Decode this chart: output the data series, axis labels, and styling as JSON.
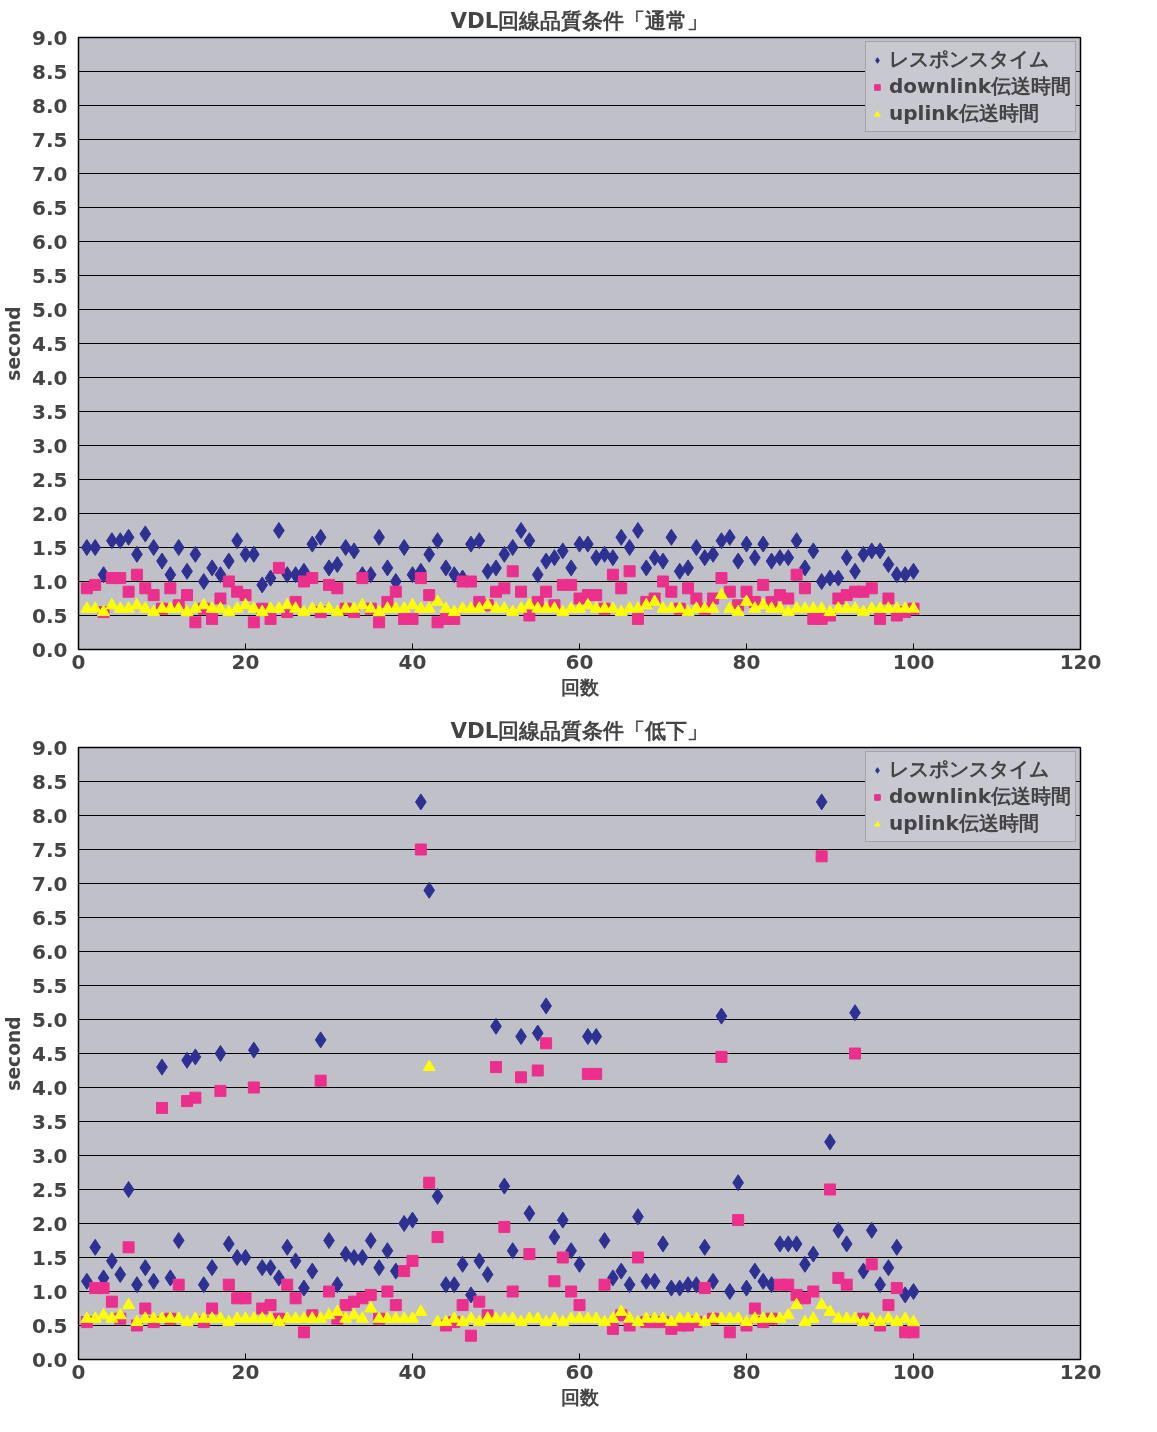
{
  "chart_data": [
    {
      "type": "scatter",
      "title": "VDL回線品質条件「通常」",
      "xlabel": "回数",
      "ylabel": "second",
      "xlim": [
        0,
        120
      ],
      "ylim": [
        0,
        9
      ],
      "xticks": [
        0,
        20,
        40,
        60,
        80,
        100,
        120
      ],
      "yticks": [
        {
          "value": 0,
          "label": "0.0"
        },
        {
          "value": 0.5,
          "label": "0.5"
        },
        {
          "value": 1,
          "label": "1.0"
        },
        {
          "value": 1.5,
          "label": "1.5"
        },
        {
          "value": 2,
          "label": "2.0"
        },
        {
          "value": 2.5,
          "label": "2.5"
        },
        {
          "value": 3,
          "label": "3.0"
        },
        {
          "value": 3.5,
          "label": "3.5"
        },
        {
          "value": 4,
          "label": "4.0"
        },
        {
          "value": 4.5,
          "label": "4.5"
        },
        {
          "value": 5,
          "label": "5.0"
        },
        {
          "value": 5.5,
          "label": "5.5"
        },
        {
          "value": 6,
          "label": "6.0"
        },
        {
          "value": 6.5,
          "label": "6.5"
        },
        {
          "value": 7,
          "label": "7.0"
        },
        {
          "value": 7.5,
          "label": "7.5"
        },
        {
          "value": 8,
          "label": "8.0"
        },
        {
          "value": 8.5,
          "label": "8.5"
        },
        {
          "value": 9,
          "label": "9.0"
        }
      ],
      "grid": "y",
      "legend": "top right",
      "x": [
        1,
        2,
        3,
        4,
        5,
        6,
        7,
        8,
        9,
        10,
        11,
        12,
        13,
        14,
        15,
        16,
        17,
        18,
        19,
        20,
        21,
        22,
        23,
        24,
        25,
        26,
        27,
        28,
        29,
        30,
        31,
        32,
        33,
        34,
        35,
        36,
        37,
        38,
        39,
        40,
        41,
        42,
        43,
        44,
        45,
        46,
        47,
        48,
        49,
        50,
        51,
        52,
        53,
        54,
        55,
        56,
        57,
        58,
        59,
        60,
        61,
        62,
        63,
        64,
        65,
        66,
        67,
        68,
        69,
        70,
        71,
        72,
        73,
        74,
        75,
        76,
        77,
        78,
        79,
        80,
        81,
        82,
        83,
        84,
        85,
        86,
        87,
        88,
        89,
        90,
        91,
        92,
        93,
        94,
        95,
        96,
        97,
        98,
        99,
        100
      ],
      "series": [
        {
          "name": "レスポンスタイム",
          "color": "#2e3192",
          "marker": "diamond",
          "values": [
            1.5,
            1.5,
            1.1,
            1.6,
            1.6,
            1.65,
            1.4,
            1.7,
            1.5,
            1.3,
            1.1,
            1.5,
            1.15,
            1.4,
            1.0,
            1.2,
            1.1,
            1.3,
            1.6,
            1.4,
            1.4,
            0.95,
            1.05,
            1.75,
            1.1,
            1.1,
            1.15,
            1.55,
            1.65,
            1.2,
            1.25,
            1.5,
            1.45,
            1.1,
            1.1,
            1.65,
            1.2,
            1.0,
            1.5,
            1.1,
            1.15,
            1.4,
            1.6,
            1.2,
            1.1,
            1.05,
            1.55,
            1.6,
            1.15,
            1.2,
            1.4,
            1.5,
            1.75,
            1.6,
            1.1,
            1.3,
            1.35,
            1.45,
            1.2,
            1.55,
            1.55,
            1.35,
            1.4,
            1.35,
            1.65,
            1.5,
            1.75,
            1.2,
            1.35,
            1.3,
            1.65,
            1.15,
            1.2,
            1.5,
            1.35,
            1.4,
            1.6,
            1.65,
            1.3,
            1.55,
            1.35,
            1.55,
            1.3,
            1.35,
            1.35,
            1.6,
            1.2,
            1.45,
            1.0,
            1.05,
            1.05,
            1.35,
            1.15,
            1.4,
            1.45,
            1.45,
            1.25,
            1.1,
            1.1,
            1.15
          ]
        },
        {
          "name": "downlink伝送時間",
          "color": "#ec2f8c",
          "marker": "square",
          "values": [
            0.9,
            0.95,
            0.55,
            1.05,
            1.05,
            0.85,
            1.1,
            0.9,
            0.8,
            0.6,
            0.9,
            0.65,
            0.8,
            0.4,
            0.6,
            0.45,
            0.75,
            1.0,
            0.85,
            0.8,
            0.4,
            0.6,
            0.45,
            1.2,
            0.55,
            0.7,
            1.0,
            1.05,
            0.55,
            0.95,
            0.9,
            0.6,
            0.55,
            1.05,
            0.6,
            0.4,
            0.7,
            0.85,
            0.45,
            0.45,
            1.05,
            0.8,
            0.4,
            0.45,
            0.45,
            1.0,
            1.0,
            0.7,
            0.65,
            0.85,
            0.9,
            1.15,
            0.85,
            0.5,
            0.7,
            0.85,
            0.65,
            0.95,
            0.95,
            0.75,
            0.8,
            0.8,
            0.6,
            1.1,
            0.9,
            1.15,
            0.45,
            0.7,
            0.75,
            1.0,
            0.85,
            0.6,
            0.9,
            0.75,
            0.6,
            0.75,
            1.05,
            0.85,
            0.65,
            0.85,
            0.7,
            0.95,
            0.7,
            0.8,
            0.75,
            1.1,
            0.9,
            0.45,
            0.45,
            0.5,
            0.75,
            0.8,
            0.85,
            0.85,
            0.9,
            0.45,
            0.75,
            0.5,
            0.55,
            0.6
          ]
        },
        {
          "name": "uplink伝送時間",
          "color": "#ffff00",
          "marker": "triangle",
          "values": [
            0.6,
            0.6,
            0.55,
            0.65,
            0.6,
            0.6,
            0.65,
            0.6,
            0.55,
            0.6,
            0.6,
            0.6,
            0.55,
            0.6,
            0.65,
            0.6,
            0.6,
            0.55,
            0.6,
            0.65,
            0.6,
            0.55,
            0.6,
            0.6,
            0.65,
            0.6,
            0.55,
            0.6,
            0.6,
            0.6,
            0.55,
            0.6,
            0.6,
            0.65,
            0.6,
            0.55,
            0.6,
            0.6,
            0.6,
            0.65,
            0.6,
            0.6,
            0.7,
            0.6,
            0.55,
            0.6,
            0.6,
            0.6,
            0.65,
            0.6,
            0.6,
            0.55,
            0.6,
            0.65,
            0.6,
            0.6,
            0.6,
            0.55,
            0.6,
            0.6,
            0.65,
            0.6,
            0.6,
            0.6,
            0.55,
            0.6,
            0.6,
            0.65,
            0.7,
            0.6,
            0.6,
            0.6,
            0.55,
            0.6,
            0.6,
            0.6,
            0.8,
            0.6,
            0.55,
            0.7,
            0.6,
            0.65,
            0.6,
            0.6,
            0.55,
            0.6,
            0.6,
            0.6,
            0.6,
            0.55,
            0.6,
            0.6,
            0.6,
            0.55,
            0.6,
            0.6,
            0.6,
            0.6,
            0.6,
            0.6
          ]
        }
      ]
    },
    {
      "type": "scatter",
      "title": "VDL回線品質条件「低下」",
      "xlabel": "回数",
      "ylabel": "second",
      "xlim": [
        0,
        120
      ],
      "ylim": [
        0,
        9
      ],
      "xticks": [
        0,
        20,
        40,
        60,
        80,
        100,
        120
      ],
      "yticks": [
        {
          "value": 0,
          "label": "0.0"
        },
        {
          "value": 0.5,
          "label": "0.5"
        },
        {
          "value": 1,
          "label": "1.0"
        },
        {
          "value": 1.5,
          "label": "1.5"
        },
        {
          "value": 2,
          "label": "2.0"
        },
        {
          "value": 2.5,
          "label": "2.5"
        },
        {
          "value": 3,
          "label": "3.0"
        },
        {
          "value": 3.5,
          "label": "3.5"
        },
        {
          "value": 4,
          "label": "4.0"
        },
        {
          "value": 4.5,
          "label": "4.5"
        },
        {
          "value": 5,
          "label": "5.0"
        },
        {
          "value": 5.5,
          "label": "5.5"
        },
        {
          "value": 6,
          "label": "6.0"
        },
        {
          "value": 6.5,
          "label": "6.5"
        },
        {
          "value": 7,
          "label": "7.0"
        },
        {
          "value": 7.5,
          "label": "7.5"
        },
        {
          "value": 8,
          "label": "8.0"
        },
        {
          "value": 8.5,
          "label": "8.5"
        },
        {
          "value": 9,
          "label": "9.0"
        }
      ],
      "grid": "y",
      "legend": "top right",
      "x": [
        1,
        2,
        3,
        4,
        5,
        6,
        7,
        8,
        9,
        10,
        11,
        12,
        13,
        14,
        15,
        16,
        17,
        18,
        19,
        20,
        21,
        22,
        23,
        24,
        25,
        26,
        27,
        28,
        29,
        30,
        31,
        32,
        33,
        34,
        35,
        36,
        37,
        38,
        39,
        40,
        41,
        42,
        43,
        44,
        45,
        46,
        47,
        48,
        49,
        50,
        51,
        52,
        53,
        54,
        55,
        56,
        57,
        58,
        59,
        60,
        61,
        62,
        63,
        64,
        65,
        66,
        67,
        68,
        69,
        70,
        71,
        72,
        73,
        74,
        75,
        76,
        77,
        78,
        79,
        80,
        81,
        82,
        83,
        84,
        85,
        86,
        87,
        88,
        89,
        90,
        91,
        92,
        93,
        94,
        95,
        96,
        97,
        98,
        99,
        100
      ],
      "series": [
        {
          "name": "レスポンスタイム",
          "color": "#2e3192",
          "marker": "diamond",
          "values": [
            1.15,
            1.65,
            1.2,
            1.45,
            1.25,
            2.5,
            1.1,
            1.35,
            1.15,
            4.3,
            1.2,
            1.75,
            4.4,
            4.45,
            1.1,
            1.35,
            4.5,
            1.7,
            1.5,
            1.5,
            4.55,
            1.35,
            1.35,
            1.2,
            1.65,
            1.45,
            1.05,
            1.3,
            4.7,
            1.75,
            1.1,
            1.55,
            1.5,
            1.5,
            1.75,
            1.35,
            1.6,
            1.3,
            2.0,
            2.05,
            8.2,
            6.9,
            2.4,
            1.1,
            1.1,
            1.4,
            0.95,
            1.45,
            1.25,
            4.9,
            2.55,
            1.6,
            4.75,
            2.15,
            4.8,
            5.2,
            1.8,
            2.05,
            1.6,
            1.4,
            4.75,
            4.75,
            1.75,
            1.2,
            1.3,
            1.1,
            2.1,
            1.15,
            1.15,
            1.7,
            1.05,
            1.05,
            1.1,
            1.1,
            1.65,
            1.15,
            5.05,
            1.0,
            2.6,
            1.05,
            1.3,
            1.15,
            1.1,
            1.7,
            1.7,
            1.7,
            1.4,
            1.55,
            8.2,
            3.2,
            1.9,
            1.7,
            5.1,
            1.3,
            1.9,
            1.1,
            1.35,
            1.65,
            0.95,
            1.0
          ]
        },
        {
          "name": "downlink伝送時間",
          "color": "#ec2f8c",
          "marker": "square",
          "values": [
            0.55,
            1.05,
            1.05,
            0.85,
            0.6,
            1.65,
            0.5,
            0.75,
            0.55,
            3.7,
            0.6,
            1.1,
            3.8,
            3.85,
            0.55,
            0.75,
            3.95,
            1.1,
            0.9,
            0.9,
            4.0,
            0.75,
            0.8,
            0.6,
            1.1,
            0.9,
            0.4,
            0.65,
            4.1,
            1.0,
            0.6,
            0.8,
            0.85,
            0.9,
            0.95,
            0.6,
            1.0,
            0.8,
            1.3,
            1.45,
            7.5,
            2.6,
            1.8,
            0.5,
            0.55,
            0.8,
            0.35,
            0.85,
            0.65,
            4.3,
            1.95,
            1.0,
            4.15,
            1.55,
            4.25,
            4.65,
            1.15,
            1.5,
            1.0,
            0.8,
            4.2,
            4.2,
            1.1,
            0.45,
            0.65,
            0.5,
            1.5,
            0.55,
            0.55,
            0.55,
            0.45,
            0.5,
            0.5,
            0.55,
            1.05,
            0.6,
            4.45,
            0.4,
            2.05,
            0.5,
            0.75,
            0.55,
            0.6,
            1.1,
            1.1,
            0.95,
            0.9,
            1.0,
            7.4,
            2.5,
            1.2,
            1.1,
            4.5,
            0.6,
            1.4,
            0.5,
            0.8,
            1.05,
            0.4,
            0.4
          ]
        },
        {
          "name": "uplink伝送時間",
          "color": "#ffff00",
          "marker": "triangle",
          "values": [
            0.6,
            0.6,
            0.65,
            0.6,
            0.65,
            0.8,
            0.55,
            0.6,
            0.6,
            0.6,
            0.6,
            0.6,
            0.55,
            0.6,
            0.6,
            0.6,
            0.6,
            0.55,
            0.6,
            0.6,
            0.6,
            0.6,
            0.6,
            0.55,
            0.6,
            0.6,
            0.6,
            0.6,
            0.6,
            0.65,
            0.7,
            0.6,
            0.65,
            0.6,
            0.75,
            0.6,
            0.6,
            0.6,
            0.6,
            0.6,
            0.7,
            4.3,
            0.55,
            0.55,
            0.6,
            0.55,
            0.6,
            0.55,
            0.6,
            0.6,
            0.6,
            0.6,
            0.55,
            0.6,
            0.6,
            0.55,
            0.6,
            0.55,
            0.6,
            0.6,
            0.6,
            0.6,
            0.55,
            0.6,
            0.7,
            0.6,
            0.55,
            0.6,
            0.6,
            0.6,
            0.55,
            0.6,
            0.6,
            0.6,
            0.55,
            0.6,
            0.6,
            0.6,
            0.6,
            0.55,
            0.6,
            0.6,
            0.6,
            0.6,
            0.65,
            0.8,
            0.55,
            0.6,
            0.8,
            0.7,
            0.6,
            0.6,
            0.6,
            0.55,
            0.6,
            0.55,
            0.6,
            0.55,
            0.6,
            0.55
          ]
        }
      ]
    }
  ]
}
